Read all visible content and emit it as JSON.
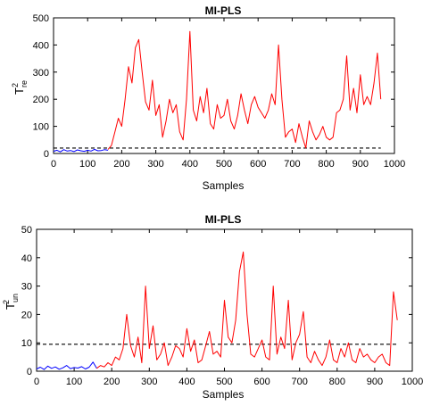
{
  "chart_data": [
    {
      "type": "line",
      "title": "MI-PLS",
      "xlabel": "Samples",
      "ylabel": {
        "base": "T",
        "sup": "2",
        "sub": "re"
      },
      "xlim": [
        0,
        1000
      ],
      "ylim": [
        0,
        500
      ],
      "xticks": [
        0,
        100,
        200,
        300,
        400,
        500,
        600,
        700,
        800,
        900,
        1000
      ],
      "yticks": [
        0,
        100,
        200,
        300,
        400,
        500
      ],
      "grid": false,
      "threshold": {
        "value": 20,
        "style": "dashed",
        "color": "#000000"
      },
      "series": [
        {
          "color": "#0000ff",
          "x": [
            0,
            10,
            20,
            30,
            40,
            50,
            60,
            70,
            80,
            90,
            100,
            110,
            120,
            130,
            140,
            150,
            160
          ],
          "y": [
            8,
            12,
            6,
            14,
            9,
            11,
            7,
            13,
            10,
            8,
            12,
            9,
            15,
            10,
            11,
            14,
            12
          ]
        },
        {
          "color": "#ff0000",
          "x": [
            160,
            170,
            180,
            190,
            200,
            210,
            220,
            230,
            240,
            250,
            260,
            270,
            280,
            290,
            300,
            310,
            320,
            330,
            340,
            350,
            360,
            370,
            380,
            390,
            400,
            410,
            420,
            430,
            440,
            450,
            460,
            470,
            480,
            490,
            500,
            510,
            520,
            530,
            540,
            550,
            560,
            570,
            580,
            590,
            600,
            610,
            620,
            630,
            640,
            650,
            660,
            670,
            680,
            690,
            700,
            710,
            720,
            730,
            740,
            750,
            760,
            770,
            780,
            790,
            800,
            810,
            820,
            830,
            840,
            850,
            860,
            870,
            880,
            890,
            900,
            910,
            920,
            930,
            940,
            950,
            960
          ],
          "y": [
            15,
            30,
            80,
            130,
            100,
            200,
            320,
            260,
            390,
            420,
            300,
            190,
            160,
            270,
            140,
            180,
            60,
            120,
            200,
            150,
            180,
            80,
            50,
            200,
            450,
            160,
            120,
            210,
            150,
            240,
            110,
            90,
            180,
            130,
            140,
            200,
            120,
            90,
            140,
            220,
            160,
            110,
            180,
            210,
            170,
            150,
            130,
            160,
            220,
            180,
            400,
            200,
            60,
            80,
            90,
            40,
            110,
            60,
            20,
            120,
            80,
            50,
            70,
            100,
            60,
            50,
            60,
            150,
            160,
            200,
            360,
            160,
            240,
            150,
            290,
            180,
            210,
            180,
            260,
            370,
            200
          ]
        }
      ]
    },
    {
      "type": "line",
      "title": "MI-PLS",
      "xlabel": "Samples",
      "ylabel": {
        "base": "T",
        "sup": "2",
        "sub": "un"
      },
      "xlim": [
        0,
        1000
      ],
      "ylim": [
        0,
        50
      ],
      "xticks": [
        0,
        100,
        200,
        300,
        400,
        500,
        600,
        700,
        800,
        900,
        1000
      ],
      "yticks": [
        0,
        10,
        20,
        30,
        40,
        50
      ],
      "grid": false,
      "threshold": {
        "value": 9.5,
        "style": "dashed",
        "color": "#000000"
      },
      "series": [
        {
          "color": "#0000ff",
          "x": [
            0,
            10,
            20,
            30,
            40,
            50,
            60,
            70,
            80,
            90,
            100,
            110,
            120,
            130,
            140,
            150,
            160
          ],
          "y": [
            0.8,
            1.4,
            0.6,
            1.8,
            1.0,
            1.5,
            0.7,
            1.2,
            2.0,
            0.9,
            1.3,
            1.1,
            1.6,
            0.8,
            1.4,
            3.2,
            1.0
          ]
        },
        {
          "color": "#ff0000",
          "x": [
            160,
            170,
            180,
            190,
            200,
            210,
            220,
            230,
            240,
            250,
            260,
            270,
            280,
            290,
            300,
            310,
            320,
            330,
            340,
            350,
            360,
            370,
            380,
            390,
            400,
            410,
            420,
            430,
            440,
            450,
            460,
            470,
            480,
            490,
            500,
            510,
            520,
            530,
            540,
            550,
            560,
            570,
            580,
            590,
            600,
            610,
            620,
            630,
            640,
            650,
            660,
            670,
            680,
            690,
            700,
            710,
            720,
            730,
            740,
            750,
            760,
            770,
            780,
            790,
            800,
            810,
            820,
            830,
            840,
            850,
            860,
            870,
            880,
            890,
            900,
            910,
            920,
            930,
            940,
            950,
            960
          ],
          "y": [
            1.0,
            2.0,
            1.5,
            3.0,
            2.0,
            5.0,
            4.0,
            8.0,
            20.0,
            9.0,
            5.0,
            12.0,
            3.0,
            30.0,
            8.0,
            16.0,
            4.0,
            6.0,
            10.0,
            2.0,
            5.0,
            9.0,
            8.0,
            5.0,
            15.0,
            7.0,
            11.0,
            3.0,
            4.0,
            9.0,
            14.0,
            6.0,
            7.0,
            5.0,
            25.0,
            12.0,
            10.0,
            18.0,
            35.0,
            42.0,
            20.0,
            6.0,
            5.0,
            8.0,
            11.0,
            5.0,
            4.0,
            30.0,
            6.0,
            12.0,
            8.0,
            25.0,
            4.0,
            10.0,
            13.0,
            21.0,
            5.0,
            3.0,
            7.0,
            4.0,
            2.0,
            5.0,
            11.0,
            4.0,
            3.0,
            8.0,
            5.0,
            10.0,
            4.0,
            3.0,
            8.0,
            5.0,
            6.0,
            4.0,
            3.0,
            5.0,
            6.0,
            3.0,
            2.0,
            28.0,
            18.0
          ]
        }
      ]
    }
  ]
}
